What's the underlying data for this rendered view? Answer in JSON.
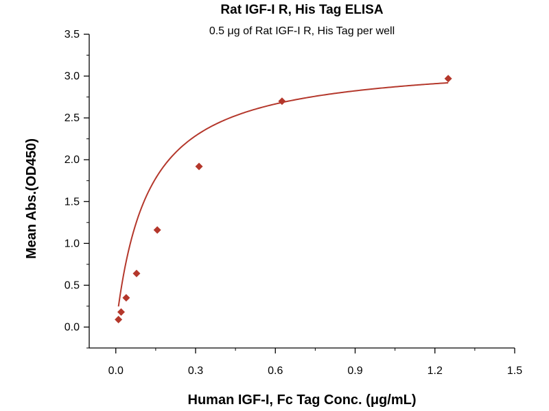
{
  "chart_data": {
    "type": "scatter",
    "title": "Rat IGF-I R, His Tag ELISA",
    "subtitle": "0.5 μg of Rat IGF-I R, His Tag per well",
    "xlabel": "Human IGF-I, Fc Tag Conc. (μg/mL)",
    "ylabel": "Mean Abs.(OD450)",
    "xlim": [
      -0.1,
      1.5
    ],
    "ylim": [
      -0.25,
      3.5
    ],
    "xticks": [
      "0.0",
      "0.3",
      "0.6",
      "0.9",
      "1.2",
      "1.5"
    ],
    "yticks": [
      "0.0",
      "0.5",
      "1.0",
      "1.5",
      "2.0",
      "2.5",
      "3.0",
      "3.5"
    ],
    "points": [
      {
        "x": 0.01,
        "y": 0.09
      },
      {
        "x": 0.02,
        "y": 0.18
      },
      {
        "x": 0.039,
        "y": 0.35
      },
      {
        "x": 0.078,
        "y": 0.64
      },
      {
        "x": 0.156,
        "y": 1.16
      },
      {
        "x": 0.313,
        "y": 1.92
      },
      {
        "x": 0.625,
        "y": 2.7
      },
      {
        "x": 1.25,
        "y": 2.97
      }
    ],
    "fit_curve": {
      "type": "hyperbolic",
      "ymin": 0,
      "ymax": 3.2,
      "k": 0.12
    },
    "marker_color": "#B4372B",
    "curve_color": "#B4372B",
    "grid": false,
    "legend": "none"
  }
}
